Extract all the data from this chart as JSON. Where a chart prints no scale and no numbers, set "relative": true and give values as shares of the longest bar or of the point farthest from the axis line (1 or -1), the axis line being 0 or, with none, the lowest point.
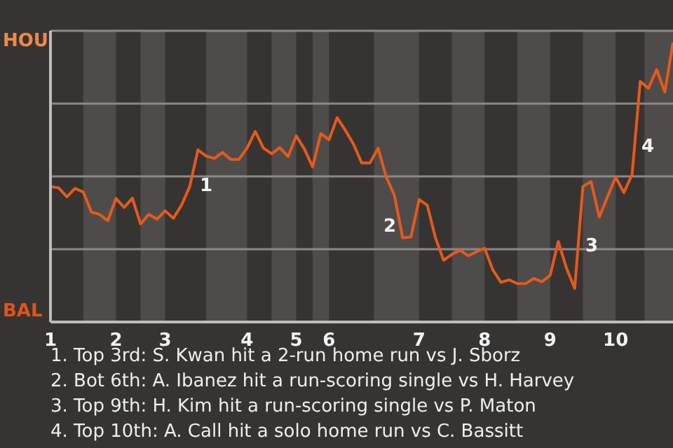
{
  "chart_data": {
    "type": "line",
    "relative": true,
    "grid": "y",
    "categories": [
      "1",
      null,
      null,
      null,
      null,
      null,
      null,
      null,
      "2",
      null,
      null,
      null,
      null,
      null,
      "3",
      null,
      null,
      null,
      null,
      null,
      null,
      null,
      null,
      null,
      "4",
      null,
      null,
      null,
      null,
      null,
      "5",
      null,
      null,
      null,
      "6",
      null,
      null,
      null,
      null,
      null,
      null,
      null,
      null,
      null,
      null,
      "7",
      null,
      null,
      null,
      null,
      null,
      null,
      null,
      "8",
      null,
      null,
      null,
      null,
      null,
      null,
      null,
      "9",
      null,
      null,
      null,
      null,
      null,
      null,
      null,
      "10",
      null,
      null,
      null,
      null,
      null,
      null,
      null
    ],
    "series": [
      {
        "color": "#e8591c",
        "values": [
          0.485,
          0.48,
          0.448,
          0.478,
          0.465,
          0.393,
          0.385,
          0.363,
          0.442,
          0.41,
          0.443,
          0.351,
          0.385,
          0.368,
          0.398,
          0.371,
          0.418,
          0.485,
          0.616,
          0.594,
          0.585,
          0.607,
          0.582,
          0.582,
          0.622,
          0.682,
          0.622,
          0.602,
          0.624,
          0.592,
          0.666,
          0.619,
          0.555,
          0.674,
          0.652,
          0.731,
          0.686,
          0.636,
          0.569,
          0.569,
          0.622,
          0.518,
          0.452,
          0.301,
          0.304,
          0.438,
          0.418,
          0.301,
          0.221,
          0.242,
          0.257,
          0.237,
          0.251,
          0.264,
          0.187,
          0.142,
          0.151,
          0.137,
          0.137,
          0.156,
          0.144,
          0.167,
          0.288,
          0.192,
          0.12,
          0.485,
          0.502,
          0.376,
          0.448,
          0.518,
          0.463,
          0.527,
          0.861,
          0.836,
          0.903,
          0.823,
          1.0
        ]
      }
    ],
    "annotations": [
      "HOU",
      "BAL",
      "1. Top 3rd: S. Kwan hit a 2-run home run vs J. Sborz",
      "2. Bot 6th: A. Ibanez hit a run-scoring single vs H. Harvey",
      "3. Top 9th: H. Kim hit a run-scoring single vs P. Maton",
      "4. Top 10th: A. Call hit a solo home run vs C. Bassitt",
      "1",
      "2",
      "3",
      "4"
    ]
  }
}
